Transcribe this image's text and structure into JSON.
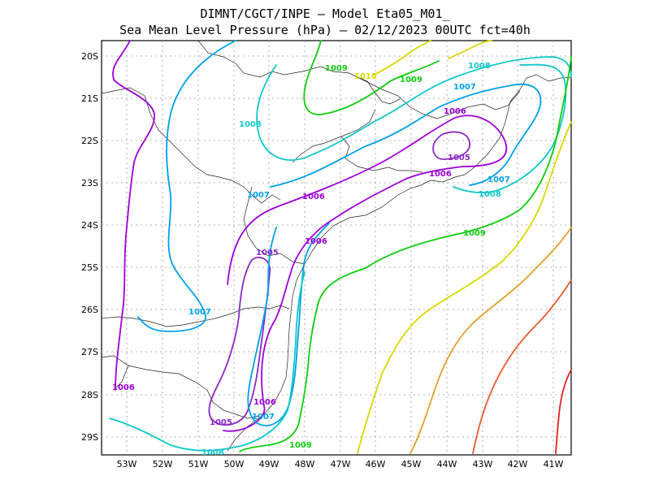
{
  "title_line1": "DIMNT/CGCT/INPE –  Model Eta05_M01_",
  "title_line2": "Sea Mean Level Pressure (hPa) – 02/12/2023 00UTC fct=40h",
  "lat_ticks": [
    "20S",
    "21S",
    "22S",
    "23S",
    "24S",
    "25S",
    "26S",
    "27S",
    "28S",
    "29S"
  ],
  "lon_ticks": [
    "53W",
    "52W",
    "51W",
    "50W",
    "49W",
    "48W",
    "47W",
    "46W",
    "45W",
    "44W",
    "43W",
    "42W",
    "41W"
  ],
  "colors": {
    "1005": "#8a2ac8",
    "1006": "#9d00d8",
    "1007": "#00a0e8",
    "1008": "#10c8c8",
    "1009": "#10cc10",
    "1010": "#d8d800",
    "1011": "#e0a030",
    "1012": "#e85a30",
    "1013": "#e82020",
    "1014": "#d80060"
  },
  "contour_labels": [
    {
      "text": "1009",
      "level": "1009"
    },
    {
      "text": "1010",
      "level": "1010"
    },
    {
      "text": "1009",
      "level": "1009"
    },
    {
      "text": "1008",
      "level": "1008"
    },
    {
      "text": "1007",
      "level": "1007"
    },
    {
      "text": "1008",
      "level": "1008"
    },
    {
      "text": "1006",
      "level": "1006"
    },
    {
      "text": "1005",
      "level": "1005"
    },
    {
      "text": "1006",
      "level": "1006"
    },
    {
      "text": "1007",
      "level": "1007"
    },
    {
      "text": "1008",
      "level": "1008"
    },
    {
      "text": "1007",
      "level": "1007"
    },
    {
      "text": "1006",
      "level": "1006"
    },
    {
      "text": "1009",
      "level": "1009"
    },
    {
      "text": "1006",
      "level": "1006"
    },
    {
      "text": "1005",
      "level": "1005"
    },
    {
      "text": "1007",
      "level": "1007"
    },
    {
      "text": "1006",
      "level": "1006"
    },
    {
      "text": "1006",
      "level": "1006"
    },
    {
      "text": "1005",
      "level": "1005"
    },
    {
      "text": "1007",
      "level": "1007"
    },
    {
      "text": "1009",
      "level": "1009"
    },
    {
      "text": "1008",
      "level": "1008"
    }
  ]
}
